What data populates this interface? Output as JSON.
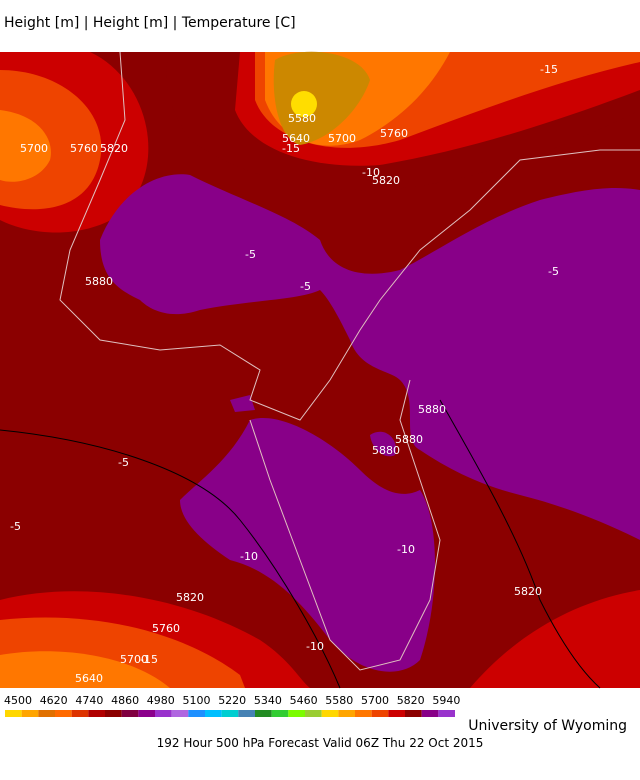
{
  "header": {
    "title": "Height [m] | Height [m] | Temperature [C]"
  },
  "map": {
    "contour_labels": [
      "5700",
      "5760",
      "5820",
      "5580",
      "5640",
      "5700",
      "5760",
      "-15",
      "-15",
      "-10",
      "5820",
      "-5",
      "5880",
      "-5",
      "5880",
      "-5",
      "5880",
      "5880",
      "-5",
      "-5",
      "-10",
      "-10",
      "5820",
      "5760",
      "5700",
      "-15",
      "5640",
      "-10",
      "5820"
    ]
  },
  "colorbar": {
    "ticks": [
      4500,
      4620,
      4740,
      4860,
      4980,
      5100,
      5220,
      5340,
      5460,
      5580,
      5700,
      5820,
      5940
    ]
  },
  "footer": {
    "credit": "University of Wyoming",
    "caption": "192 Hour 500 hPa Forecast Valid 06Z Thu 22 Oct 2015"
  }
}
